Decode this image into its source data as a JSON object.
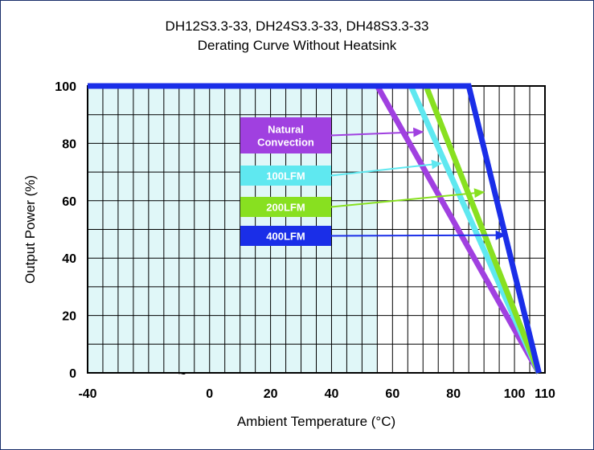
{
  "chart_data": {
    "type": "line",
    "title": "DH12S3.3-33, DH24S3.3-33, DH48S3.3-33",
    "subtitle": "Derating Curve Without Heatsink",
    "xlabel": "Ambient Temperature (°C)",
    "ylabel": "Output Power (%)",
    "xlim": [
      -40,
      110
    ],
    "ylim": [
      0,
      100
    ],
    "x_ticks": [
      -40,
      0,
      20,
      40,
      60,
      80,
      100,
      110
    ],
    "y_ticks": [
      0,
      20,
      40,
      60,
      80,
      100
    ],
    "axis_break_symbol": "~",
    "grid": true,
    "shaded_region": {
      "x_from": -40,
      "x_to": 55,
      "color": "#e0f7f8"
    },
    "series": [
      {
        "name": "Natural Convection",
        "color": "#a040e0",
        "points": [
          [
            55,
            100
          ],
          [
            108,
            0
          ]
        ]
      },
      {
        "name": "100LFM",
        "color": "#5fe8f0",
        "points": [
          [
            66,
            100
          ],
          [
            108,
            0
          ]
        ]
      },
      {
        "name": "200LFM",
        "color": "#88e020",
        "points": [
          [
            71,
            100
          ],
          [
            108,
            0
          ]
        ]
      },
      {
        "name": "400LFM",
        "color": "#1a2ee8",
        "points": [
          [
            -40,
            100
          ],
          [
            85,
            100
          ],
          [
            108,
            0
          ]
        ]
      }
    ],
    "legend": [
      {
        "label_lines": [
          "Natural",
          "Convection"
        ],
        "color": "#a040e0",
        "arrow_to": [
          70,
          84
        ]
      },
      {
        "label_lines": [
          "100LFM"
        ],
        "color": "#5fe8f0",
        "arrow_to": [
          76,
          73
        ]
      },
      {
        "label_lines": [
          "200LFM"
        ],
        "color": "#88e020",
        "arrow_to": [
          90,
          63
        ]
      },
      {
        "label_lines": [
          "400LFM"
        ],
        "color": "#1a2ee8",
        "arrow_to": [
          97,
          48
        ]
      }
    ]
  }
}
